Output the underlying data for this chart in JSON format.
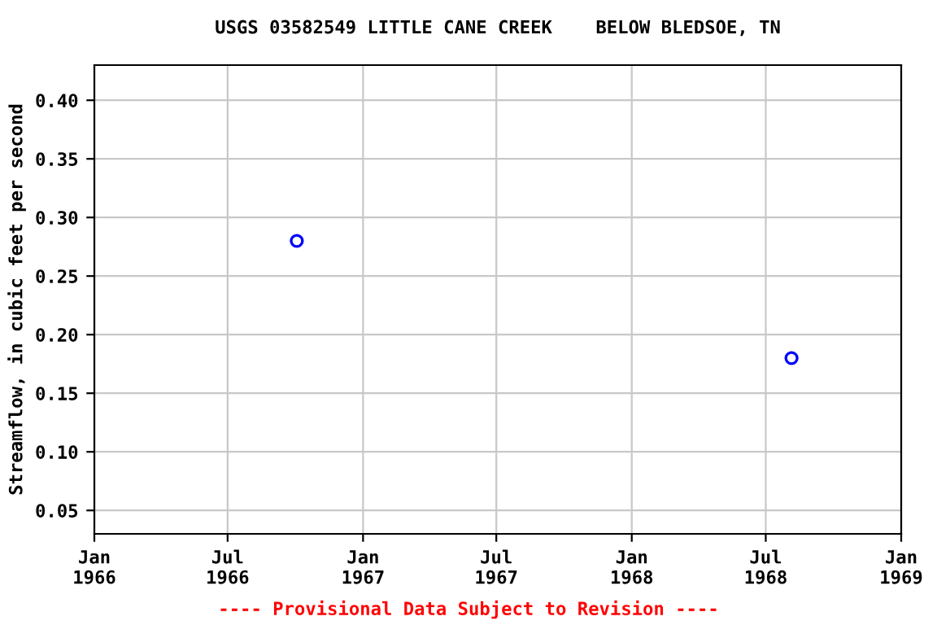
{
  "chart_data": {
    "type": "scatter",
    "title": "USGS 03582549 LITTLE CANE CREEK    BELOW BLEDSOE, TN",
    "ylabel": "Streamflow, in cubic feet per second",
    "x": [
      "1966-10-03",
      "1968-08-05"
    ],
    "series": [
      {
        "color": "#0000ff",
        "values": [
          0.28,
          0.18
        ]
      }
    ],
    "marker": "circle",
    "grid": true,
    "xlim": [
      "1966-01-01",
      "1969-01-01"
    ],
    "xticks": [
      {
        "value": "1966-01-01",
        "label": "Jan\n1966"
      },
      {
        "value": "1966-07-01",
        "label": "Jul\n1966"
      },
      {
        "value": "1967-01-01",
        "label": "Jan\n1967"
      },
      {
        "value": "1967-07-01",
        "label": "Jul\n1967"
      },
      {
        "value": "1968-01-01",
        "label": "Jan\n1968"
      },
      {
        "value": "1968-07-01",
        "label": "Jul\n1968"
      },
      {
        "value": "1969-01-01",
        "label": "Jan\n1969"
      }
    ],
    "ylim": [
      0.03,
      0.43
    ],
    "yticks": [
      {
        "value": 0.05,
        "label": "0.05"
      },
      {
        "value": 0.1,
        "label": "0.10"
      },
      {
        "value": 0.15,
        "label": "0.15"
      },
      {
        "value": 0.2,
        "label": "0.20"
      },
      {
        "value": 0.25,
        "label": "0.25"
      },
      {
        "value": 0.3,
        "label": "0.30"
      },
      {
        "value": 0.35,
        "label": "0.35"
      },
      {
        "value": 0.4,
        "label": "0.40"
      }
    ],
    "annotations": [
      "---- Provisional Data Subject to Revision ----"
    ]
  }
}
